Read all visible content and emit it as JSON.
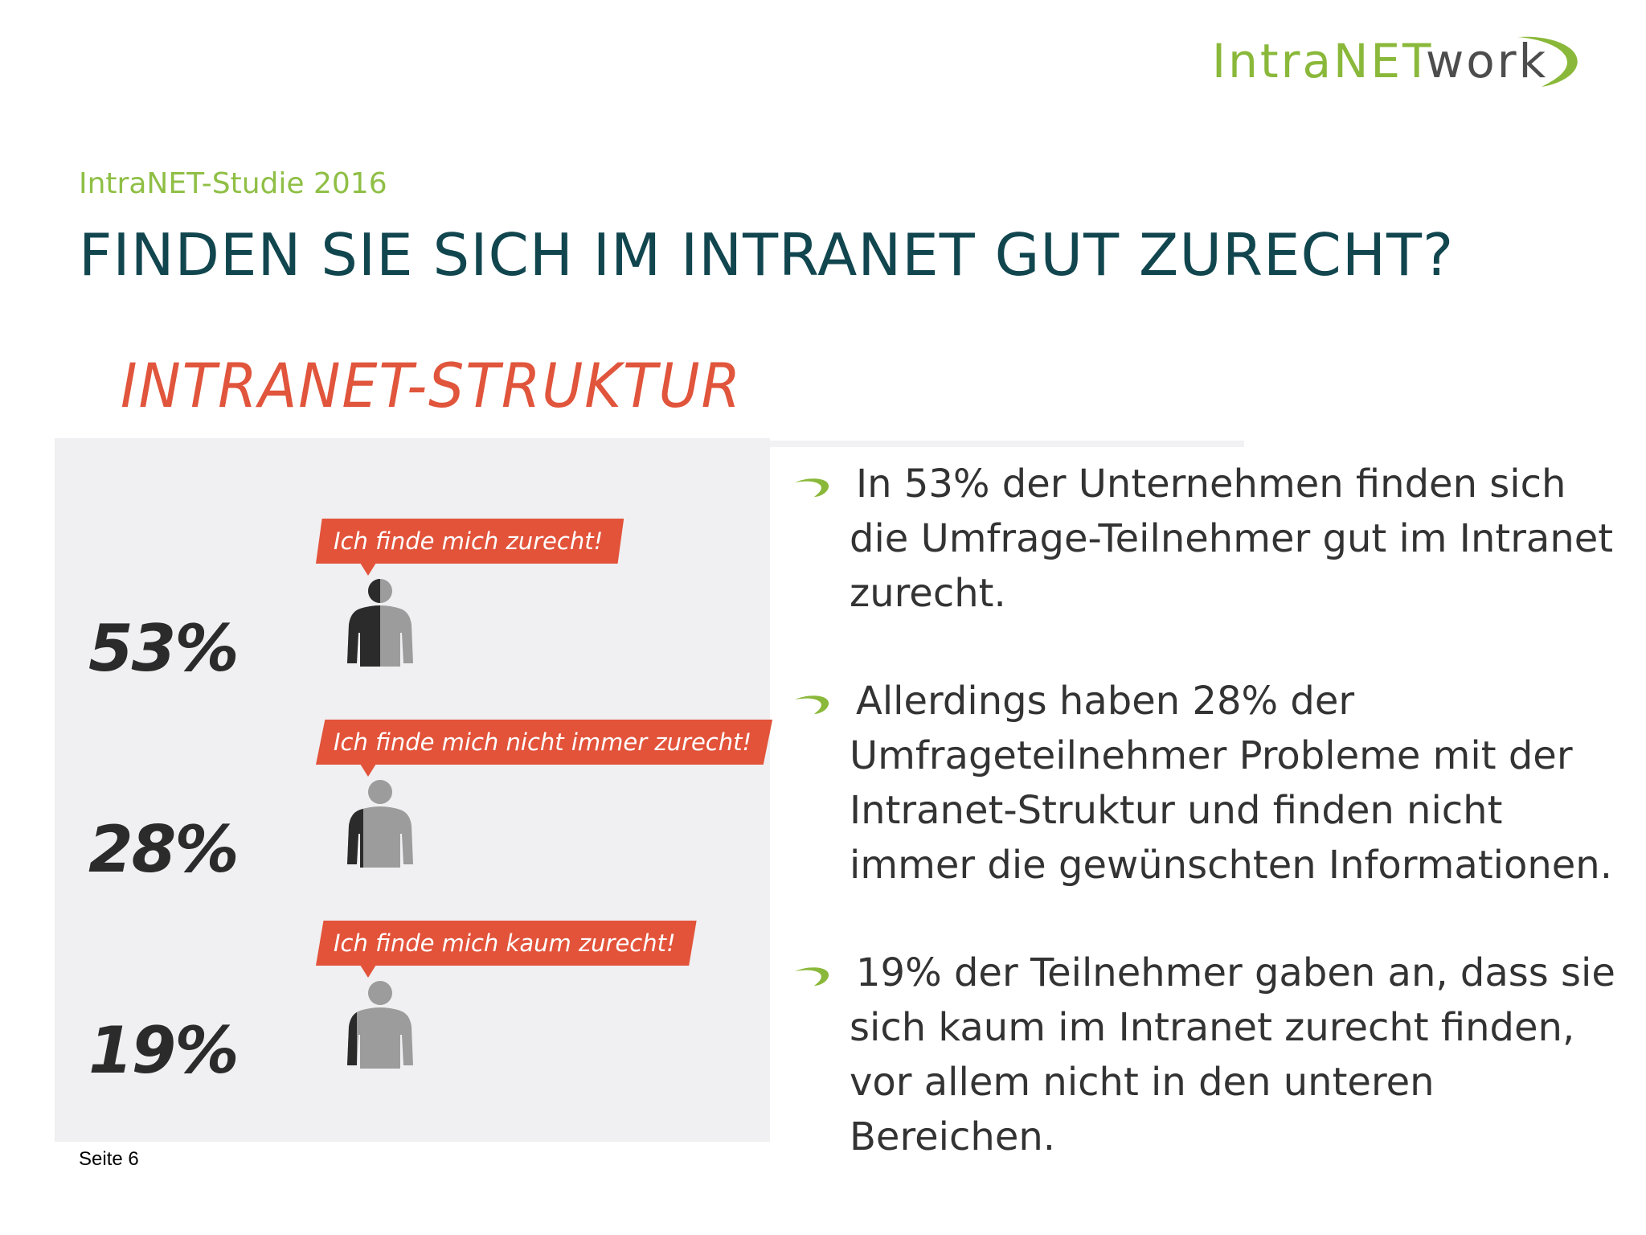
{
  "logo": {
    "text_intra": "Intra",
    "text_net": "NET",
    "text_work": "work"
  },
  "header": {
    "subtitle": "IntraNET-Studie 2016",
    "title": "FINDEN SIE SICH IM INTRANET GUT ZURECHT?"
  },
  "infographic": {
    "heading": "INTRANET-STRUKTUR",
    "rows": [
      {
        "percent": "53%",
        "bubble": "Ich finde mich zurecht!",
        "dark_share": 0.53
      },
      {
        "percent": "28%",
        "bubble": "Ich finde mich nicht immer zurecht!",
        "dark_share": 0.28
      },
      {
        "percent": "19%",
        "bubble": "Ich finde mich kaum zurecht!",
        "dark_share": 0.19
      }
    ]
  },
  "bullets": [
    "In 53% der Unternehmen finden sich die Umfrage-Teilnehmer gut im Intranet zurecht.",
    "Allerdings haben 28% der Umfrageteilnehmer Probleme mit der Intranet-Struktur und finden nicht immer die gewünschten Informationen.",
    "19% der Teilnehmer gaben an, dass sie sich kaum im Intranet zurecht finden, vor allem nicht in den unteren Bereichen."
  ],
  "footer": {
    "page": "Seite 6"
  },
  "colors": {
    "accent_green": "#8ab83a",
    "title_teal": "#11464f",
    "infographic_red": "#e2533a",
    "person_dark": "#2b2b2b",
    "person_light": "#9c9c9c"
  }
}
